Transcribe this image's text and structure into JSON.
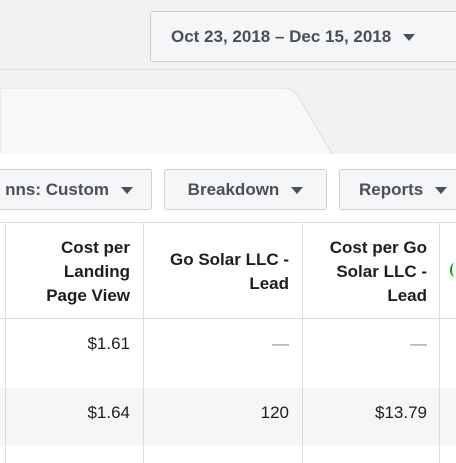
{
  "date_range": {
    "label": "Oct 23, 2018 – Dec 15, 2018"
  },
  "toolbar": {
    "columns_label": "nns: Custom",
    "breakdown_label": "Breakdown",
    "reports_label": "Reports"
  },
  "table": {
    "headers": [
      "Cost per\nLanding\nPage View",
      "Go Solar LLC -\nLead",
      "Cost per Go\nSolar LLC -\nLead"
    ],
    "rows": [
      [
        "$1.61",
        "—",
        "—"
      ],
      [
        "$1.64",
        "120",
        "$13.79"
      ]
    ]
  },
  "colors": {
    "accent_green": "#00a400"
  }
}
